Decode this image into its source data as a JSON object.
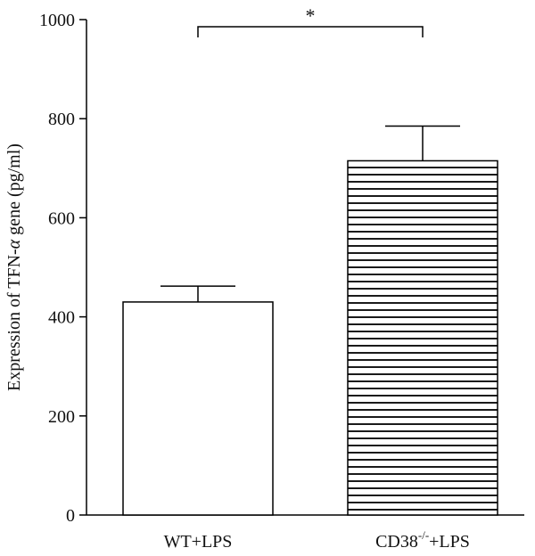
{
  "chart_data": {
    "type": "bar",
    "categories": [
      "WT+LPS",
      "CD38-/-+LPS"
    ],
    "category_labels": [
      {
        "main": "WT+LPS",
        "sup": "",
        "tail": ""
      },
      {
        "main": "CD38",
        "sup": "-/-",
        "tail": "+LPS"
      }
    ],
    "values": [
      430,
      715
    ],
    "errors": [
      32,
      70
    ],
    "bar_fill": [
      "#ffffff",
      "horizontal-stripes"
    ],
    "bar_colors": {
      "outline": "#000000",
      "stripe": "#000000"
    },
    "ylabel": {
      "prefix": "Expression of TFN-",
      "italic": "α",
      "suffix": " gene (pg/ml)"
    },
    "ylim": [
      0,
      1000
    ],
    "yticks": [
      0,
      200,
      400,
      600,
      800,
      1000
    ],
    "ytick_labels": [
      "0",
      "200",
      "400",
      "600",
      "800",
      "1000"
    ],
    "grid": false,
    "significance": {
      "between": [
        0,
        1
      ],
      "label": "*"
    }
  }
}
